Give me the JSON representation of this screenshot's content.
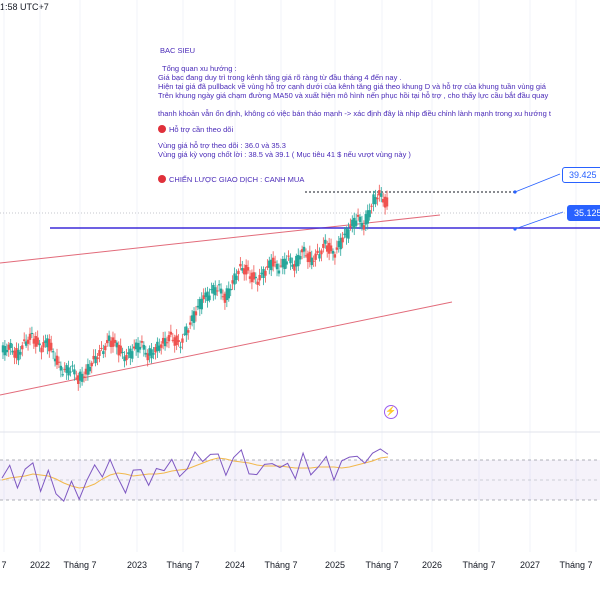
{
  "header": {
    "time": "1:58 UTC+7"
  },
  "notes": {
    "title": "BAC SIEU",
    "lines": [
      "Tổng quan xu hướng :",
      "Giá bạc đang duy trì trong kênh tăng giá rõ ràng từ đầu tháng 4 đến nay .",
      "Hiện tại giá đã pullback về vùng hỗ trợ cạnh dưới của kênh tăng giá  theo khung D và hỗ trợ của khung tuần vùng giá",
      "Trên khung ngày giá chạm đường MA50 và xuất hiện mô hình nến phục hồi tại hỗ trợ , cho thấy lực cầu bắt đầu quay",
      "thanh khoản vẫn ổn định, không có việc bán tháo mạnh -> xác định đây là nhịp điều chỉnh lành mạnh trong xu hướng t"
    ],
    "support_heading": "Hỗ trợ  cần theo dõi",
    "support_lines": [
      "Vùng giá hỗ trợ  theo dõi : 36.0 và 35.3",
      "Vùng giá kỳ vọng chốt lời : 38.5 và 39.1 ( Mục tiêu 41 $ nếu vượt vùng này )"
    ],
    "strategy": "CHIẾN LƯỢC GIAO DỊCH : CANH MUA"
  },
  "price_tags": {
    "high": "39.425",
    "support": "35.125"
  },
  "chart_data": {
    "type": "line",
    "title": "",
    "x_ticks": [
      "7",
      "2022",
      "Tháng 7",
      "2023",
      "Tháng 7",
      "2024",
      "Tháng 7",
      "2025",
      "Tháng 7",
      "2026",
      "Tháng 7",
      "2027",
      "Tháng 7"
    ],
    "levels": {
      "recent_high": 39.425,
      "support": 35.125
    },
    "price": {
      "t": [
        0,
        4,
        8,
        12,
        16,
        20,
        24,
        28,
        32,
        36,
        40,
        44,
        48,
        52,
        56,
        60,
        64,
        68,
        72,
        76,
        80,
        84,
        88,
        92,
        96,
        100,
        104,
        108,
        112,
        116,
        120,
        124,
        128,
        132,
        136,
        140,
        144,
        148,
        152,
        156,
        160,
        164,
        168,
        172,
        176,
        180,
        184,
        188,
        192,
        196,
        200
      ],
      "close": [
        22.4,
        23.2,
        22.1,
        23.6,
        24.1,
        22.8,
        23.4,
        21.5,
        20.2,
        20.8,
        19.6,
        20.5,
        21.8,
        22.6,
        23.7,
        22.9,
        21.6,
        22.5,
        23.3,
        22.1,
        22.9,
        23.6,
        24.2,
        23.1,
        24.6,
        26.3,
        27.9,
        28.6,
        29.4,
        28.2,
        30.1,
        31.6,
        30.8,
        29.9,
        30.7,
        31.9,
        31.1,
        32.4,
        31.6,
        33.5,
        32.2,
        32.8,
        33.9,
        32.6,
        34.1,
        35.3,
        36.6,
        35.9,
        38.4,
        39.4,
        37.9
      ]
    },
    "rsi": {
      "ylim": [
        0,
        100
      ],
      "levels": [
        70,
        50,
        30
      ],
      "values": [
        52,
        61,
        47,
        58,
        66,
        43,
        55,
        38,
        31,
        44,
        35,
        49,
        62,
        58,
        67,
        52,
        41,
        55,
        63,
        46,
        57,
        64,
        69,
        51,
        66,
        74,
        69,
        79,
        71,
        58,
        73,
        76,
        61,
        53,
        64,
        71,
        58,
        68,
        54,
        72,
        59,
        63,
        70,
        55,
        66,
        72,
        78,
        62,
        79,
        83,
        71
      ]
    },
    "rsi_ma": [
      50,
      52,
      53,
      54,
      56,
      55,
      54,
      51,
      47,
      44,
      42,
      43,
      46,
      51,
      55,
      57,
      56,
      54,
      55,
      56,
      56,
      57,
      59,
      60,
      61,
      64,
      67,
      70,
      72,
      71,
      69,
      68,
      67,
      65,
      64,
      64,
      64,
      63,
      62,
      62,
      62,
      63,
      63,
      63,
      62,
      63,
      65,
      67,
      69,
      72,
      73
    ]
  }
}
